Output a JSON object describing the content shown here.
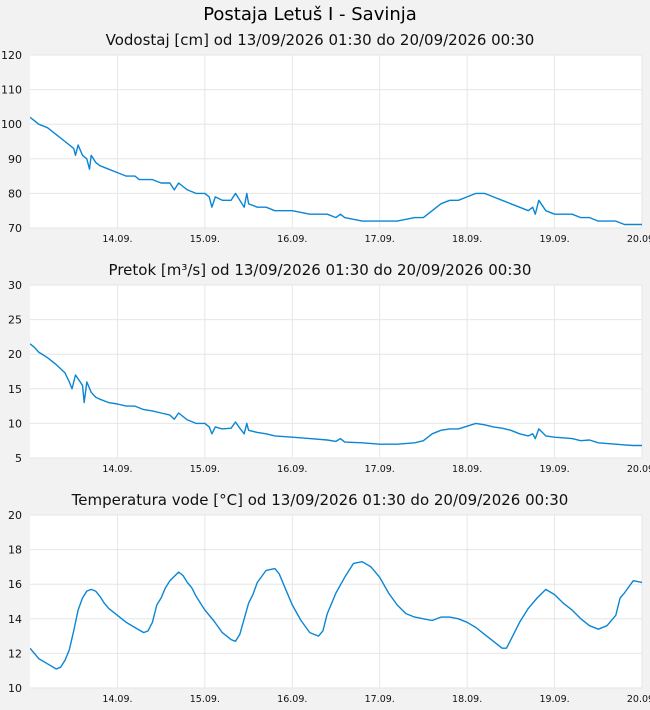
{
  "page_title": "Postaja Letuš I - Savinja",
  "colors": {
    "series": "#0a86d4",
    "background": "#f2f2f2",
    "plot": "#ffffff"
  },
  "chart_data": [
    {
      "type": "line",
      "title": "Vodostaj [cm] od 13/09/2026 01:30 do 20/09/2026 00:30",
      "ylim": [
        70,
        120
      ],
      "yticks": [
        70,
        80,
        90,
        100,
        110,
        120
      ],
      "xlim": [
        0,
        7
      ],
      "xticks": [
        {
          "x": 1,
          "label": "14.09."
        },
        {
          "x": 2,
          "label": "15.09."
        },
        {
          "x": 3,
          "label": "16.09."
        },
        {
          "x": 4,
          "label": "17.09."
        },
        {
          "x": 5,
          "label": "18.09."
        },
        {
          "x": 6,
          "label": "19.09."
        },
        {
          "x": 7,
          "label": "20.09."
        }
      ],
      "grid": true,
      "series": [
        {
          "values": [
            [
              0.0,
              102
            ],
            [
              0.05,
              101
            ],
            [
              0.1,
              100
            ],
            [
              0.2,
              99
            ],
            [
              0.3,
              97
            ],
            [
              0.4,
              95
            ],
            [
              0.5,
              93
            ],
            [
              0.52,
              91
            ],
            [
              0.55,
              94
            ],
            [
              0.6,
              91
            ],
            [
              0.65,
              90
            ],
            [
              0.68,
              87
            ],
            [
              0.7,
              91
            ],
            [
              0.75,
              89
            ],
            [
              0.8,
              88
            ],
            [
              0.9,
              87
            ],
            [
              1.0,
              86
            ],
            [
              1.1,
              85
            ],
            [
              1.2,
              85
            ],
            [
              1.25,
              84
            ],
            [
              1.4,
              84
            ],
            [
              1.5,
              83
            ],
            [
              1.6,
              83
            ],
            [
              1.65,
              81
            ],
            [
              1.7,
              83
            ],
            [
              1.75,
              82
            ],
            [
              1.8,
              81
            ],
            [
              1.9,
              80
            ],
            [
              2.0,
              80
            ],
            [
              2.05,
              79
            ],
            [
              2.08,
              76
            ],
            [
              2.12,
              79
            ],
            [
              2.2,
              78
            ],
            [
              2.3,
              78
            ],
            [
              2.35,
              80
            ],
            [
              2.4,
              78
            ],
            [
              2.45,
              76
            ],
            [
              2.48,
              80
            ],
            [
              2.5,
              77
            ],
            [
              2.6,
              76
            ],
            [
              2.7,
              76
            ],
            [
              2.8,
              75
            ],
            [
              3.0,
              75
            ],
            [
              3.2,
              74
            ],
            [
              3.4,
              74
            ],
            [
              3.5,
              73
            ],
            [
              3.55,
              74
            ],
            [
              3.6,
              73
            ],
            [
              3.8,
              72
            ],
            [
              4.0,
              72
            ],
            [
              4.2,
              72
            ],
            [
              4.4,
              73
            ],
            [
              4.5,
              73
            ],
            [
              4.6,
              75
            ],
            [
              4.7,
              77
            ],
            [
              4.8,
              78
            ],
            [
              4.9,
              78
            ],
            [
              5.0,
              79
            ],
            [
              5.1,
              80
            ],
            [
              5.2,
              80
            ],
            [
              5.3,
              79
            ],
            [
              5.4,
              78
            ],
            [
              5.5,
              77
            ],
            [
              5.6,
              76
            ],
            [
              5.7,
              75
            ],
            [
              5.75,
              76
            ],
            [
              5.78,
              74
            ],
            [
              5.82,
              78
            ],
            [
              5.9,
              75
            ],
            [
              6.0,
              74
            ],
            [
              6.2,
              74
            ],
            [
              6.3,
              73
            ],
            [
              6.4,
              73
            ],
            [
              6.5,
              72
            ],
            [
              6.7,
              72
            ],
            [
              6.8,
              71
            ],
            [
              6.9,
              71
            ],
            [
              7.0,
              71
            ]
          ]
        }
      ]
    },
    {
      "type": "line",
      "title": "Pretok [m³/s] od 13/09/2026 01:30 do 20/09/2026 00:30",
      "ylim": [
        5,
        30
      ],
      "yticks": [
        5,
        10,
        15,
        20,
        25,
        30
      ],
      "xlim": [
        0,
        7
      ],
      "xticks": [
        {
          "x": 1,
          "label": "14.09."
        },
        {
          "x": 2,
          "label": "15.09."
        },
        {
          "x": 3,
          "label": "16.09."
        },
        {
          "x": 4,
          "label": "17.09."
        },
        {
          "x": 5,
          "label": "18.09."
        },
        {
          "x": 6,
          "label": "19.09."
        },
        {
          "x": 7,
          "label": "20.09."
        }
      ],
      "grid": true,
      "series": [
        {
          "values": [
            [
              0.0,
              21.5
            ],
            [
              0.05,
              21
            ],
            [
              0.1,
              20.3
            ],
            [
              0.2,
              19.5
            ],
            [
              0.3,
              18.5
            ],
            [
              0.4,
              17.3
            ],
            [
              0.45,
              16
            ],
            [
              0.48,
              15
            ],
            [
              0.52,
              17
            ],
            [
              0.6,
              15.5
            ],
            [
              0.62,
              13
            ],
            [
              0.65,
              16
            ],
            [
              0.7,
              14.5
            ],
            [
              0.75,
              13.8
            ],
            [
              0.8,
              13.5
            ],
            [
              0.9,
              13
            ],
            [
              1.0,
              12.8
            ],
            [
              1.1,
              12.5
            ],
            [
              1.2,
              12.5
            ],
            [
              1.3,
              12
            ],
            [
              1.4,
              11.8
            ],
            [
              1.5,
              11.5
            ],
            [
              1.6,
              11.2
            ],
            [
              1.65,
              10.6
            ],
            [
              1.7,
              11.5
            ],
            [
              1.8,
              10.5
            ],
            [
              1.9,
              10
            ],
            [
              2.0,
              10
            ],
            [
              2.05,
              9.5
            ],
            [
              2.08,
              8.5
            ],
            [
              2.12,
              9.5
            ],
            [
              2.2,
              9.2
            ],
            [
              2.3,
              9.3
            ],
            [
              2.35,
              10.2
            ],
            [
              2.4,
              9.3
            ],
            [
              2.45,
              8.5
            ],
            [
              2.48,
              10
            ],
            [
              2.5,
              9
            ],
            [
              2.6,
              8.7
            ],
            [
              2.7,
              8.5
            ],
            [
              2.8,
              8.2
            ],
            [
              3.0,
              8
            ],
            [
              3.2,
              7.8
            ],
            [
              3.4,
              7.6
            ],
            [
              3.5,
              7.4
            ],
            [
              3.55,
              7.8
            ],
            [
              3.6,
              7.3
            ],
            [
              3.8,
              7.2
            ],
            [
              4.0,
              7.0
            ],
            [
              4.2,
              7.0
            ],
            [
              4.4,
              7.2
            ],
            [
              4.5,
              7.5
            ],
            [
              4.6,
              8.5
            ],
            [
              4.7,
              9
            ],
            [
              4.8,
              9.2
            ],
            [
              4.9,
              9.2
            ],
            [
              5.0,
              9.6
            ],
            [
              5.1,
              10
            ],
            [
              5.2,
              9.8
            ],
            [
              5.3,
              9.5
            ],
            [
              5.4,
              9.3
            ],
            [
              5.5,
              9
            ],
            [
              5.6,
              8.5
            ],
            [
              5.7,
              8.2
            ],
            [
              5.75,
              8.5
            ],
            [
              5.78,
              7.8
            ],
            [
              5.82,
              9.2
            ],
            [
              5.9,
              8.2
            ],
            [
              6.0,
              8
            ],
            [
              6.2,
              7.8
            ],
            [
              6.3,
              7.5
            ],
            [
              6.4,
              7.6
            ],
            [
              6.5,
              7.2
            ],
            [
              6.7,
              7.0
            ],
            [
              6.8,
              6.9
            ],
            [
              6.9,
              6.8
            ],
            [
              7.0,
              6.8
            ]
          ]
        }
      ]
    },
    {
      "type": "line",
      "title": "Temperatura vode [°C] od 13/09/2026 01:30 do 20/09/2026 00:30",
      "ylim": [
        10,
        20
      ],
      "yticks": [
        10,
        12,
        14,
        16,
        18,
        20
      ],
      "xlim": [
        0,
        7
      ],
      "xticks": [
        {
          "x": 1,
          "label": "14.09."
        },
        {
          "x": 2,
          "label": "15.09."
        },
        {
          "x": 3,
          "label": "16.09."
        },
        {
          "x": 4,
          "label": "17.09."
        },
        {
          "x": 5,
          "label": "18.09."
        },
        {
          "x": 6,
          "label": "19.09."
        },
        {
          "x": 7,
          "label": "20.09."
        }
      ],
      "grid": true,
      "series": [
        {
          "values": [
            [
              0.0,
              12.3
            ],
            [
              0.1,
              11.7
            ],
            [
              0.2,
              11.4
            ],
            [
              0.3,
              11.1
            ],
            [
              0.35,
              11.2
            ],
            [
              0.4,
              11.6
            ],
            [
              0.45,
              12.2
            ],
            [
              0.5,
              13.3
            ],
            [
              0.55,
              14.5
            ],
            [
              0.6,
              15.2
            ],
            [
              0.65,
              15.6
            ],
            [
              0.7,
              15.7
            ],
            [
              0.75,
              15.6
            ],
            [
              0.8,
              15.3
            ],
            [
              0.85,
              14.9
            ],
            [
              0.9,
              14.6
            ],
            [
              1.0,
              14.2
            ],
            [
              1.1,
              13.8
            ],
            [
              1.2,
              13.5
            ],
            [
              1.3,
              13.2
            ],
            [
              1.35,
              13.3
            ],
            [
              1.4,
              13.8
            ],
            [
              1.45,
              14.8
            ],
            [
              1.5,
              15.2
            ],
            [
              1.55,
              15.8
            ],
            [
              1.6,
              16.2
            ],
            [
              1.7,
              16.7
            ],
            [
              1.75,
              16.5
            ],
            [
              1.8,
              16.1
            ],
            [
              1.85,
              15.8
            ],
            [
              1.9,
              15.3
            ],
            [
              2.0,
              14.5
            ],
            [
              2.1,
              13.9
            ],
            [
              2.2,
              13.2
            ],
            [
              2.3,
              12.8
            ],
            [
              2.35,
              12.7
            ],
            [
              2.4,
              13.1
            ],
            [
              2.45,
              14
            ],
            [
              2.5,
              14.9
            ],
            [
              2.55,
              15.4
            ],
            [
              2.6,
              16.1
            ],
            [
              2.7,
              16.8
            ],
            [
              2.8,
              16.9
            ],
            [
              2.85,
              16.6
            ],
            [
              2.9,
              16.0
            ],
            [
              3.0,
              14.8
            ],
            [
              3.1,
              13.9
            ],
            [
              3.2,
              13.2
            ],
            [
              3.3,
              13.0
            ],
            [
              3.35,
              13.3
            ],
            [
              3.4,
              14.3
            ],
            [
              3.5,
              15.5
            ],
            [
              3.6,
              16.4
            ],
            [
              3.7,
              17.2
            ],
            [
              3.8,
              17.3
            ],
            [
              3.9,
              17.0
            ],
            [
              4.0,
              16.4
            ],
            [
              4.1,
              15.5
            ],
            [
              4.2,
              14.8
            ],
            [
              4.3,
              14.3
            ],
            [
              4.4,
              14.1
            ],
            [
              4.5,
              14.0
            ],
            [
              4.6,
              13.9
            ],
            [
              4.7,
              14.1
            ],
            [
              4.8,
              14.1
            ],
            [
              4.9,
              14.0
            ],
            [
              5.0,
              13.8
            ],
            [
              5.1,
              13.5
            ],
            [
              5.2,
              13.1
            ],
            [
              5.3,
              12.7
            ],
            [
              5.4,
              12.3
            ],
            [
              5.45,
              12.3
            ],
            [
              5.5,
              12.8
            ],
            [
              5.6,
              13.8
            ],
            [
              5.7,
              14.6
            ],
            [
              5.8,
              15.2
            ],
            [
              5.9,
              15.7
            ],
            [
              6.0,
              15.4
            ],
            [
              6.1,
              14.9
            ],
            [
              6.2,
              14.5
            ],
            [
              6.3,
              14.0
            ],
            [
              6.4,
              13.6
            ],
            [
              6.5,
              13.4
            ],
            [
              6.6,
              13.6
            ],
            [
              6.7,
              14.2
            ],
            [
              6.75,
              15.2
            ],
            [
              6.8,
              15.5
            ],
            [
              6.9,
              16.2
            ],
            [
              7.0,
              16.1
            ],
            [
              7.1,
              15.7
            ],
            [
              7.2,
              15.2
            ]
          ]
        }
      ]
    }
  ]
}
